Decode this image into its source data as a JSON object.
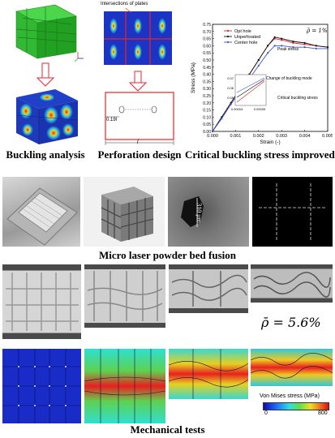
{
  "panels": {
    "buckling": {
      "caption": "Buckling analysis"
    },
    "perforation": {
      "caption": "Perforation design",
      "top_label": "Intersections of plates",
      "dim_hole": "0.19l",
      "dim_len": "l"
    },
    "critical": {
      "caption": "Critical buckling stress improved",
      "chart_data": {
        "type": "line",
        "xlabel": "Strain (-)",
        "ylabel": "Stress (MPa)",
        "xlim": [
          0,
          0.005
        ],
        "ylim": [
          0,
          0.75
        ],
        "x_ticks": [
          "0.000",
          "0.001",
          "0.002",
          "0.003",
          "0.004",
          "0.005"
        ],
        "y_ticks": [
          "0.00",
          "0.05",
          "0.10",
          "0.15",
          "0.20",
          "0.25",
          "0.30",
          "0.35",
          "0.40",
          "0.45",
          "0.50",
          "0.55",
          "0.60",
          "0.65",
          "0.70",
          "0.75"
        ],
        "annotation_rho": "ρ̄ = 1%",
        "annotations": [
          "Peak stress",
          "Change of buckling mode",
          "Critical buckling stress"
        ],
        "inset_x_ticks": [
          "0.00004",
          "0.00005"
        ],
        "inset_y_ticks": [
          "0.07",
          "0.06",
          "0.05"
        ],
        "series": [
          {
            "name": "Opt hole",
            "color": "#e0262b",
            "x": [
              0,
              0.0004,
              0.0008,
              0.0012,
              0.0016,
              0.002,
              0.0024,
              0.0027,
              0.003,
              0.0035,
              0.004,
              0.0045,
              0.005
            ],
            "y": [
              0,
              0.1,
              0.2,
              0.3,
              0.4,
              0.5,
              0.6,
              0.65,
              0.64,
              0.62,
              0.61,
              0.6,
              0.59
            ]
          },
          {
            "name": "Unperforated",
            "color": "#111111",
            "x": [
              0,
              0.0004,
              0.0008,
              0.0012,
              0.0016,
              0.002,
              0.0024,
              0.0027,
              0.003,
              0.0035,
              0.004,
              0.0045,
              0.005
            ],
            "y": [
              0,
              0.1,
              0.2,
              0.3,
              0.4,
              0.5,
              0.6,
              0.66,
              0.65,
              0.63,
              0.62,
              0.6,
              0.59
            ]
          },
          {
            "name": "Center hole",
            "color": "#3a55d8",
            "x": [
              0,
              0.0004,
              0.0008,
              0.0012,
              0.0016,
              0.002,
              0.0024,
              0.0027,
              0.003,
              0.0035,
              0.004,
              0.0045,
              0.005
            ],
            "y": [
              0,
              0.09,
              0.19,
              0.28,
              0.37,
              0.46,
              0.55,
              0.6,
              0.6,
              0.59,
              0.59,
              0.58,
              0.58
            ]
          }
        ]
      }
    },
    "fabrication": {
      "caption": "Micro laser powder bed fusion",
      "scale_label": "310 μm"
    },
    "mechanical": {
      "caption": "Mechanical tests",
      "rho_label": "ρ̄ = 5.6%",
      "colorbar_title": "Von Mises stress (MPa)",
      "colorbar_min": "0",
      "colorbar_max": "800"
    }
  }
}
